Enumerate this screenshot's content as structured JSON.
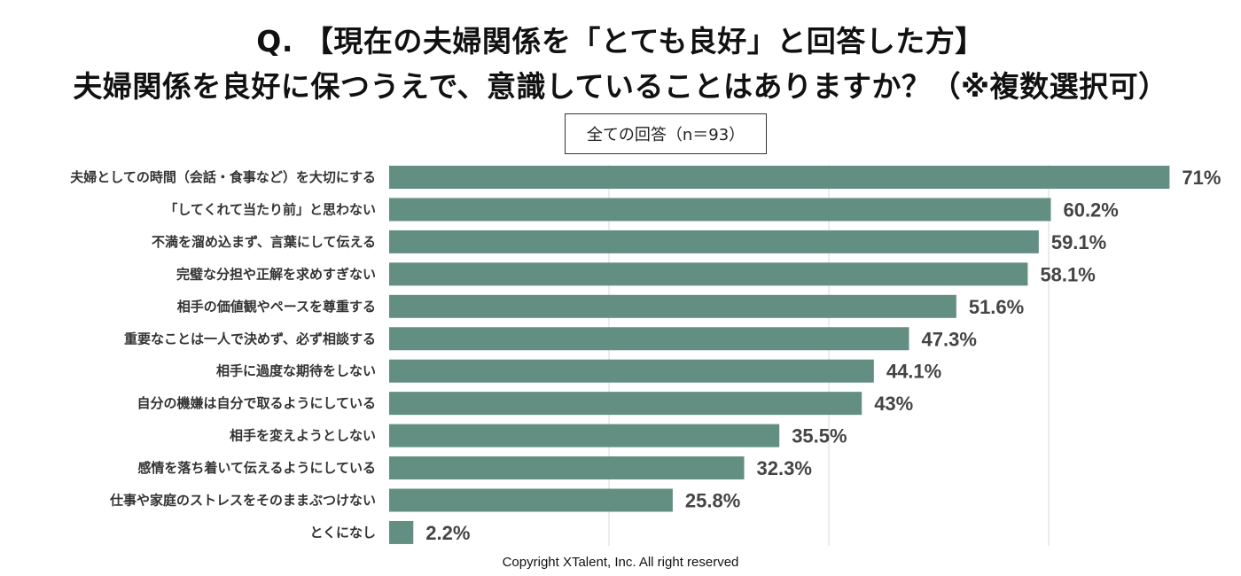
{
  "title_line1": "Q. 【現在の夫婦関係を「とても良好」と回答した方】",
  "title_line2": "夫婦関係を良好に保つうえで、意識していることはありますか？（※複数選択可）",
  "subtitle": "全ての回答（n＝93）",
  "copyright": "Copyright XTalent, Inc. All right reserved",
  "colors": {
    "bar": "#628f81",
    "grid": "#d9d9d9"
  },
  "chart_data": {
    "type": "bar",
    "orientation": "horizontal",
    "categories": [
      "夫婦としての時間（会話・食事など）を大切にする",
      "「してくれて当たり前」と思わない",
      "不満を溜め込まず、言葉にして伝える",
      "完璧な分担や正解を求めすぎない",
      "相手の価値観やペースを尊重する",
      "重要なことは一人で決めず、必ず相談する",
      "相手に過度な期待をしない",
      "自分の機嫌は自分で取るようにしている",
      "相手を変えようとしない",
      "感情を落ち着いて伝えるようにしている",
      "仕事や家庭のストレスをそのままぶつけない",
      "とくになし"
    ],
    "values": [
      71,
      60.2,
      59.1,
      58.1,
      51.6,
      47.3,
      44.1,
      43,
      35.5,
      32.3,
      25.8,
      2.2
    ],
    "value_labels": [
      "71%",
      "60.2%",
      "59.1%",
      "58.1%",
      "51.6%",
      "47.3%",
      "44.1%",
      "43%",
      "35.5%",
      "32.3%",
      "25.8%",
      "2.2%"
    ],
    "xlim": [
      0,
      72
    ],
    "gridlines": [
      20,
      40,
      60
    ],
    "grid": true
  }
}
